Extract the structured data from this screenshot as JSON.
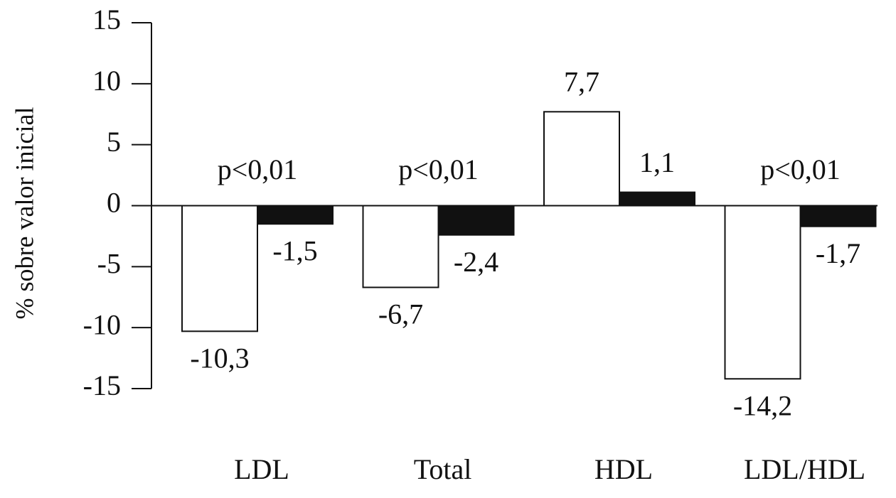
{
  "chart_data": {
    "type": "bar",
    "y_label": "% sobre valor inicial",
    "categories": [
      "LDL",
      "Total",
      "HDL",
      "LDL/HDL"
    ],
    "series": [
      {
        "color": "#ffffff",
        "values": [
          -10.3,
          -6.7,
          7.7,
          -14.2
        ],
        "value_labels": [
          "-10,3",
          "-6,7",
          "7,7",
          "-14,2"
        ]
      },
      {
        "color": "#111111",
        "values": [
          -1.5,
          -2.4,
          1.1,
          -1.7
        ],
        "value_labels": [
          "-1,5",
          "-2,4",
          "1,1",
          "-1,7"
        ]
      }
    ],
    "annotations": [
      "p<0,01",
      "p<0,01",
      null,
      "p<0,01"
    ],
    "ylim": [
      -15,
      15
    ],
    "yticks": [
      -15,
      -10,
      -5,
      0,
      5,
      10,
      15
    ],
    "grid": false
  }
}
